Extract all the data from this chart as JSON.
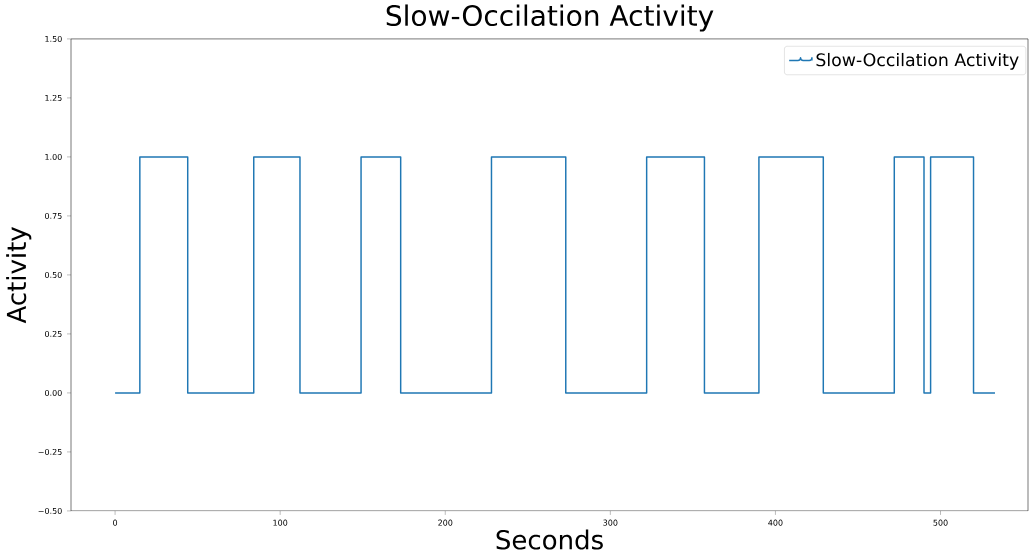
{
  "chart_data": {
    "type": "step",
    "title": "Slow-Occilation Activity",
    "xlabel": "Seconds",
    "ylabel": "Activity",
    "series": [
      {
        "name": "Slow-Occilation Activity",
        "color": "#1f77b4",
        "x": [
          0,
          15,
          44,
          84,
          112,
          149,
          173,
          228,
          273,
          322,
          357,
          390,
          429,
          472,
          490,
          494,
          520,
          533
        ],
        "values": [
          0,
          1,
          0,
          1,
          0,
          1,
          0,
          1,
          0,
          1,
          0,
          1,
          0,
          1,
          0,
          1,
          0,
          0
        ]
      }
    ],
    "xlim": [
      -26.7,
      553
    ],
    "ylim": [
      -0.5,
      1.5
    ],
    "xticks": [
      0,
      100,
      200,
      300,
      400,
      500
    ],
    "yticks": [
      {
        "value": -0.5,
        "label": "−0.50"
      },
      {
        "value": -0.25,
        "label": "−0.25"
      },
      {
        "value": 0,
        "label": "0.00"
      },
      {
        "value": 0.25,
        "label": "0.25"
      },
      {
        "value": 0.5,
        "label": "0.50"
      },
      {
        "value": 0.75,
        "label": "0.75"
      },
      {
        "value": 1,
        "label": "1.00"
      },
      {
        "value": 1.25,
        "label": "1.25"
      },
      {
        "value": 1.5,
        "label": "1.50"
      }
    ],
    "legend": "top right",
    "grid": false
  }
}
